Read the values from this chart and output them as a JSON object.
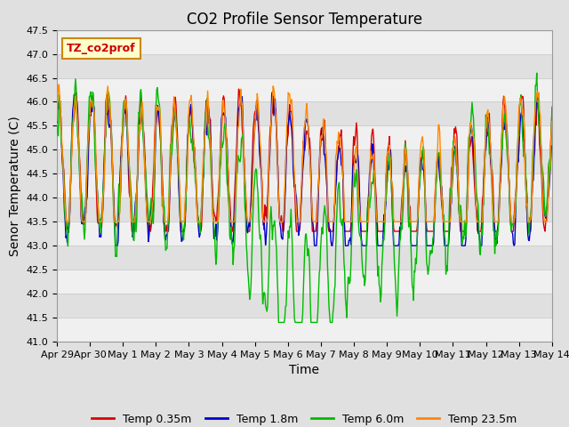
{
  "title": "CO2 Profile Sensor Temperature",
  "ylabel": "Senor Temperature (C)",
  "xlabel": "Time",
  "annotation": "TZ_co2prof",
  "ylim": [
    41.0,
    47.5
  ],
  "yticks": [
    41.0,
    41.5,
    42.0,
    42.5,
    43.0,
    43.5,
    44.0,
    44.5,
    45.0,
    45.5,
    46.0,
    46.5,
    47.0,
    47.5
  ],
  "xtick_labels": [
    "Apr 29",
    "Apr 30",
    "May 1",
    "May 2",
    "May 3",
    "May 4",
    "May 5",
    "May 6",
    "May 7",
    "May 8",
    "May 9",
    "May 10",
    "May 11",
    "May 12",
    "May 13",
    "May 14"
  ],
  "line_colors": [
    "#dd0000",
    "#0000cc",
    "#00bb00",
    "#ff8800"
  ],
  "line_labels": [
    "Temp 0.35m",
    "Temp 1.8m",
    "Temp 6.0m",
    "Temp 23.5m"
  ],
  "line_width": 1.0,
  "grid_color": "#cccccc",
  "bg_color": "#e0e0e0",
  "band_color": "#f0f0f0",
  "annotation_bg": "#ffffcc",
  "annotation_border": "#cc8800",
  "title_fontsize": 12,
  "axis_label_fontsize": 10,
  "tick_fontsize": 8,
  "legend_fontsize": 9,
  "n_points": 720,
  "days": 15
}
